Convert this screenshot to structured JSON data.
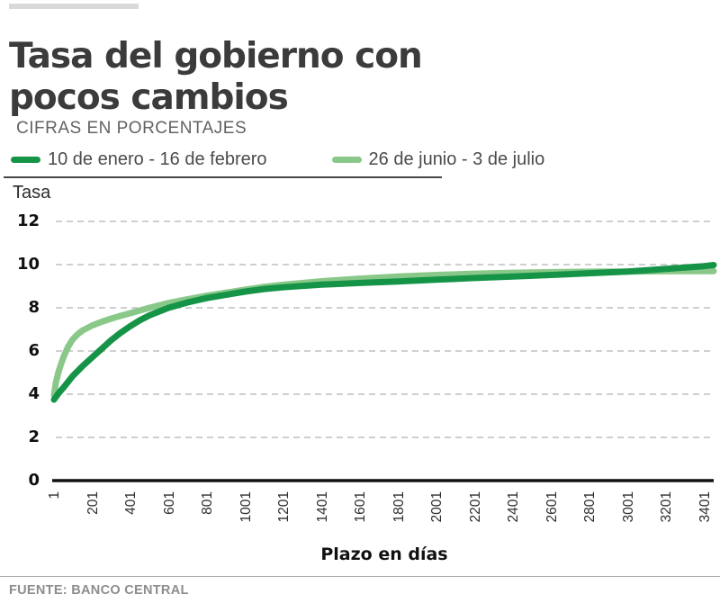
{
  "header": {
    "title": "Tasa del gobierno con pocos cambios",
    "subtitle": "CIFRAS EN PORCENTAJES"
  },
  "footer": {
    "source": "FUENTE: BANCO CENTRAL"
  },
  "colors": {
    "series_dark_green": "#159448",
    "series_light_green": "#8AC88A",
    "gridline": "#bfbfbf",
    "axis": "#111111",
    "kicker_bar": "#d9d9d9"
  },
  "chart_data": {
    "type": "line",
    "title": "Tasa del gobierno con pocos cambios",
    "subtitle": "CIFRAS EN PORCENTAJES",
    "ylabel": "Tasa",
    "xlabel": "Plazo en días",
    "ylim": [
      0,
      12
    ],
    "xlim": [
      1,
      3450
    ],
    "yticks": [
      0,
      2,
      4,
      6,
      8,
      10,
      12
    ],
    "xticks": [
      1,
      201,
      401,
      601,
      801,
      1001,
      1201,
      1401,
      1601,
      1801,
      2001,
      2201,
      2401,
      2601,
      2801,
      3001,
      3201,
      3401
    ],
    "grid": "horizontal-dashed",
    "legend_position": "top-left",
    "series": [
      {
        "name": "10 de enero - 16 de febrero",
        "color": "#159448",
        "points": [
          [
            1,
            3.75
          ],
          [
            25,
            4.05
          ],
          [
            50,
            4.3
          ],
          [
            100,
            4.85
          ],
          [
            150,
            5.3
          ],
          [
            200,
            5.7
          ],
          [
            250,
            6.1
          ],
          [
            300,
            6.5
          ],
          [
            350,
            6.85
          ],
          [
            400,
            7.15
          ],
          [
            450,
            7.42
          ],
          [
            500,
            7.65
          ],
          [
            600,
            8.0
          ],
          [
            700,
            8.25
          ],
          [
            800,
            8.45
          ],
          [
            900,
            8.6
          ],
          [
            1000,
            8.75
          ],
          [
            1100,
            8.87
          ],
          [
            1200,
            8.95
          ],
          [
            1400,
            9.07
          ],
          [
            1600,
            9.15
          ],
          [
            1800,
            9.22
          ],
          [
            2000,
            9.3
          ],
          [
            2200,
            9.38
          ],
          [
            2400,
            9.45
          ],
          [
            2600,
            9.52
          ],
          [
            2800,
            9.6
          ],
          [
            3000,
            9.68
          ],
          [
            3200,
            9.8
          ],
          [
            3400,
            9.93
          ],
          [
            3450,
            9.98
          ]
        ]
      },
      {
        "name": "26 de junio - 3 de julio",
        "color": "#8AC88A",
        "points": [
          [
            1,
            3.95
          ],
          [
            10,
            4.5
          ],
          [
            25,
            5.05
          ],
          [
            40,
            5.45
          ],
          [
            50,
            5.7
          ],
          [
            75,
            6.2
          ],
          [
            100,
            6.55
          ],
          [
            125,
            6.78
          ],
          [
            150,
            6.95
          ],
          [
            200,
            7.18
          ],
          [
            250,
            7.35
          ],
          [
            300,
            7.5
          ],
          [
            350,
            7.63
          ],
          [
            400,
            7.75
          ],
          [
            500,
            8.0
          ],
          [
            600,
            8.22
          ],
          [
            700,
            8.4
          ],
          [
            800,
            8.56
          ],
          [
            900,
            8.7
          ],
          [
            1000,
            8.84
          ],
          [
            1100,
            8.97
          ],
          [
            1200,
            9.07
          ],
          [
            1400,
            9.23
          ],
          [
            1600,
            9.35
          ],
          [
            1800,
            9.45
          ],
          [
            2000,
            9.52
          ],
          [
            2200,
            9.58
          ],
          [
            2400,
            9.62
          ],
          [
            2600,
            9.65
          ],
          [
            2800,
            9.67
          ],
          [
            3000,
            9.68
          ],
          [
            3200,
            9.69
          ],
          [
            3400,
            9.7
          ],
          [
            3450,
            9.7
          ]
        ]
      }
    ]
  }
}
